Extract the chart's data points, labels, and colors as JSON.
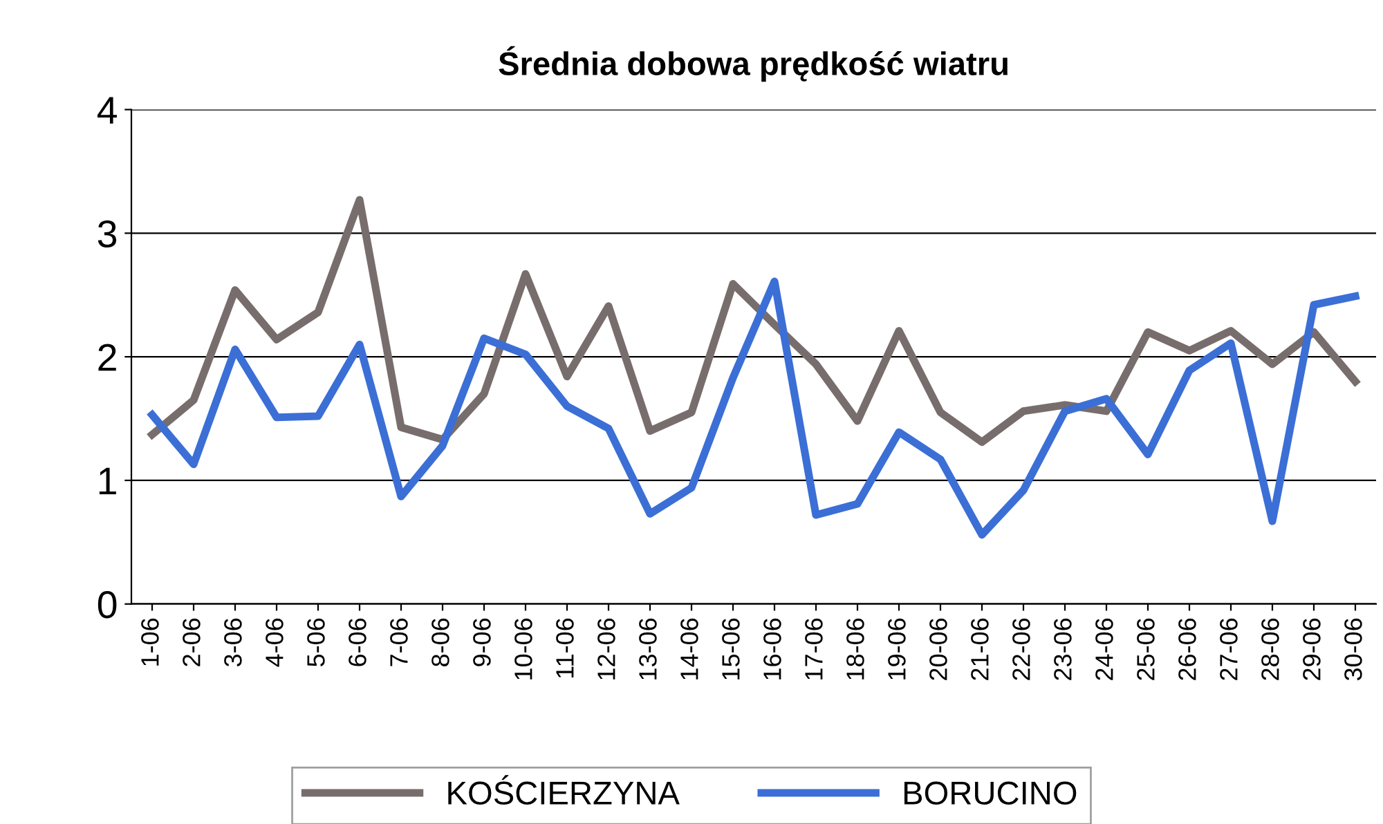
{
  "chart_data": {
    "type": "line",
    "title": "Średnia dobowa prędkość wiatru",
    "categories": [
      "1-06",
      "2-06",
      "3-06",
      "4-06",
      "5-06",
      "6-06",
      "7-06",
      "8-06",
      "9-06",
      "10-06",
      "11-06",
      "12-06",
      "13-06",
      "14-06",
      "15-06",
      "16-06",
      "17-06",
      "18-06",
      "19-06",
      "20-06",
      "21-06",
      "22-06",
      "23-06",
      "24-06",
      "25-06",
      "26-06",
      "27-06",
      "28-06",
      "29-06",
      "30-06"
    ],
    "series": [
      {
        "name": "KOŚCIERZYNA",
        "color": "#786d6d",
        "values": [
          1.37,
          1.65,
          2.54,
          2.14,
          2.36,
          3.27,
          1.43,
          1.33,
          1.7,
          2.67,
          1.84,
          2.41,
          1.4,
          1.55,
          2.59,
          2.26,
          1.94,
          1.48,
          2.21,
          1.55,
          1.31,
          1.56,
          1.61,
          1.56,
          2.2,
          2.05,
          2.21,
          1.94,
          2.2,
          1.8
        ]
      },
      {
        "name": "BORUCINO",
        "color": "#3b6fd6",
        "values": [
          1.53,
          1.13,
          2.06,
          1.51,
          1.52,
          2.1,
          0.87,
          1.28,
          2.15,
          2.02,
          1.6,
          1.42,
          0.73,
          0.94,
          1.83,
          2.61,
          0.72,
          0.81,
          1.39,
          1.17,
          0.56,
          0.92,
          1.56,
          1.66,
          1.21,
          1.89,
          2.11,
          0.67,
          2.42,
          2.49
        ]
      }
    ],
    "ylim": [
      0,
      4
    ],
    "yticks": [
      0,
      1,
      2,
      3,
      4
    ],
    "grid": "y",
    "legend": "bottom",
    "marker": "none",
    "line_style": "solid"
  }
}
